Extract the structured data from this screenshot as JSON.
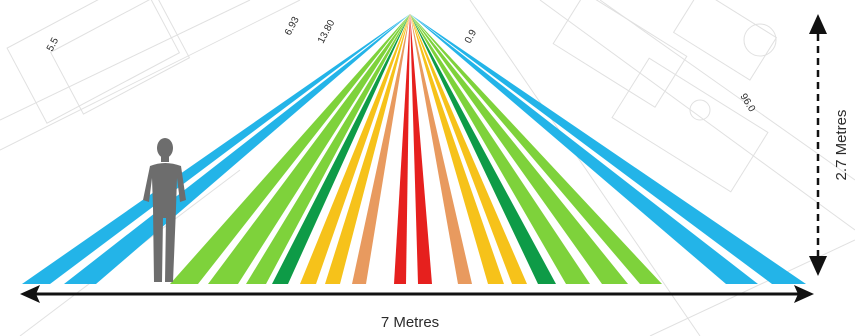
{
  "diagram": {
    "width_label": "7 Metres",
    "height_label": "2.7 Metres",
    "blueprint_labels": [
      "5.5",
      "6.93",
      "13.80",
      "0.9",
      "96.0"
    ],
    "colors": {
      "blue": "#23b4e8",
      "light_green": "#7ed23b",
      "dark_green": "#0e9b47",
      "yellow": "#f6c21a",
      "orange": "#e89a5f",
      "red": "#e6201e",
      "person": "#6d6d6d",
      "arrow": "#111111",
      "blueprint": "#d9d9d9"
    },
    "beam_color_sequence": [
      "blue",
      "blue",
      "light_green",
      "light_green",
      "light_green",
      "dark_green",
      "yellow",
      "yellow",
      "orange",
      "red",
      "red",
      "orange",
      "yellow",
      "yellow",
      "dark_green",
      "light_green",
      "light_green",
      "light_green",
      "blue",
      "blue"
    ],
    "icons": [
      "person-silhouette-icon",
      "double-arrow-icon"
    ]
  }
}
